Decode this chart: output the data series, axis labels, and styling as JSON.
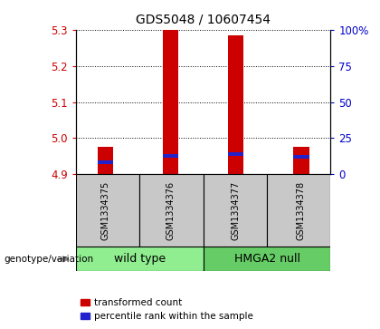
{
  "title": "GDS5048 / 10607454",
  "samples": [
    "GSM1334375",
    "GSM1334376",
    "GSM1334377",
    "GSM1334378"
  ],
  "group_colors": [
    "#90EE90",
    "#66CC66"
  ],
  "bar_color_red": "#cc0000",
  "bar_color_blue": "#2222cc",
  "ylim_left": [
    4.9,
    5.3
  ],
  "ylim_right": [
    0,
    100
  ],
  "yticks_left": [
    4.9,
    5.0,
    5.1,
    5.2,
    5.3
  ],
  "yticks_right": [
    0,
    25,
    50,
    75,
    100
  ],
  "ytick_labels_right": [
    "0",
    "25",
    "50",
    "75",
    "100%"
  ],
  "red_bar_tops": [
    4.975,
    5.3,
    5.285,
    4.975
  ],
  "red_bar_bottoms": [
    4.9,
    4.9,
    4.9,
    4.9
  ],
  "blue_bar_centers": [
    4.933,
    4.952,
    4.957,
    4.948
  ],
  "blue_bar_height": 0.01,
  "bar_width": 0.08,
  "background_color": "#ffffff",
  "left_tick_color": "#cc0000",
  "right_tick_color": "#0000cc",
  "sample_area_color": "#c8c8c8",
  "legend_red_label": "transformed count",
  "legend_blue_label": "percentile rank within the sample",
  "genotype_label": "genotype/variation",
  "group_ranges": [
    [
      0,
      2,
      "wild type"
    ],
    [
      2,
      4,
      "HMGA2 null"
    ]
  ]
}
